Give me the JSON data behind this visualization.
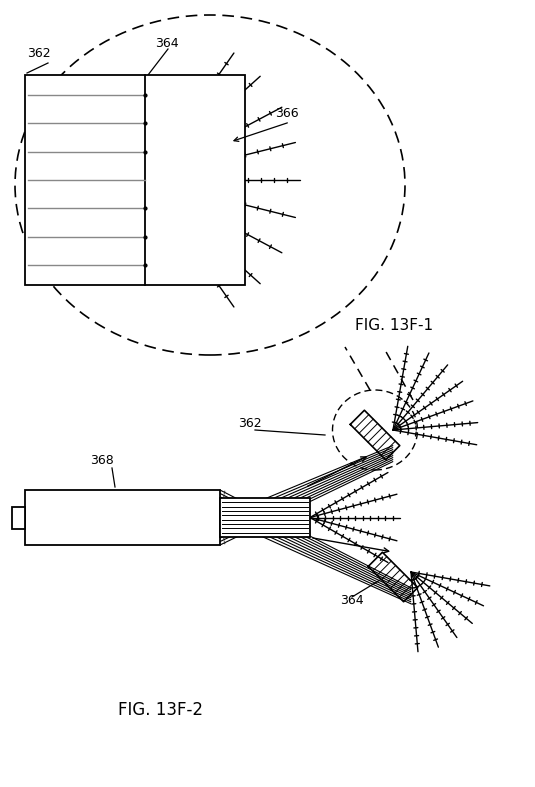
{
  "fig_title_1": "FIG. 13F-1",
  "fig_title_2": "FIG. 13F-2",
  "bg_color": "#ffffff",
  "line_color": "#000000",
  "gray_color": "#888888",
  "label_362_top": "362",
  "label_364_top": "364",
  "label_366_top": "366",
  "label_362_bot": "362",
  "label_364_bot": "364",
  "label_368_bot": "368",
  "figw": 5.35,
  "figh": 7.87,
  "dpi": 100
}
